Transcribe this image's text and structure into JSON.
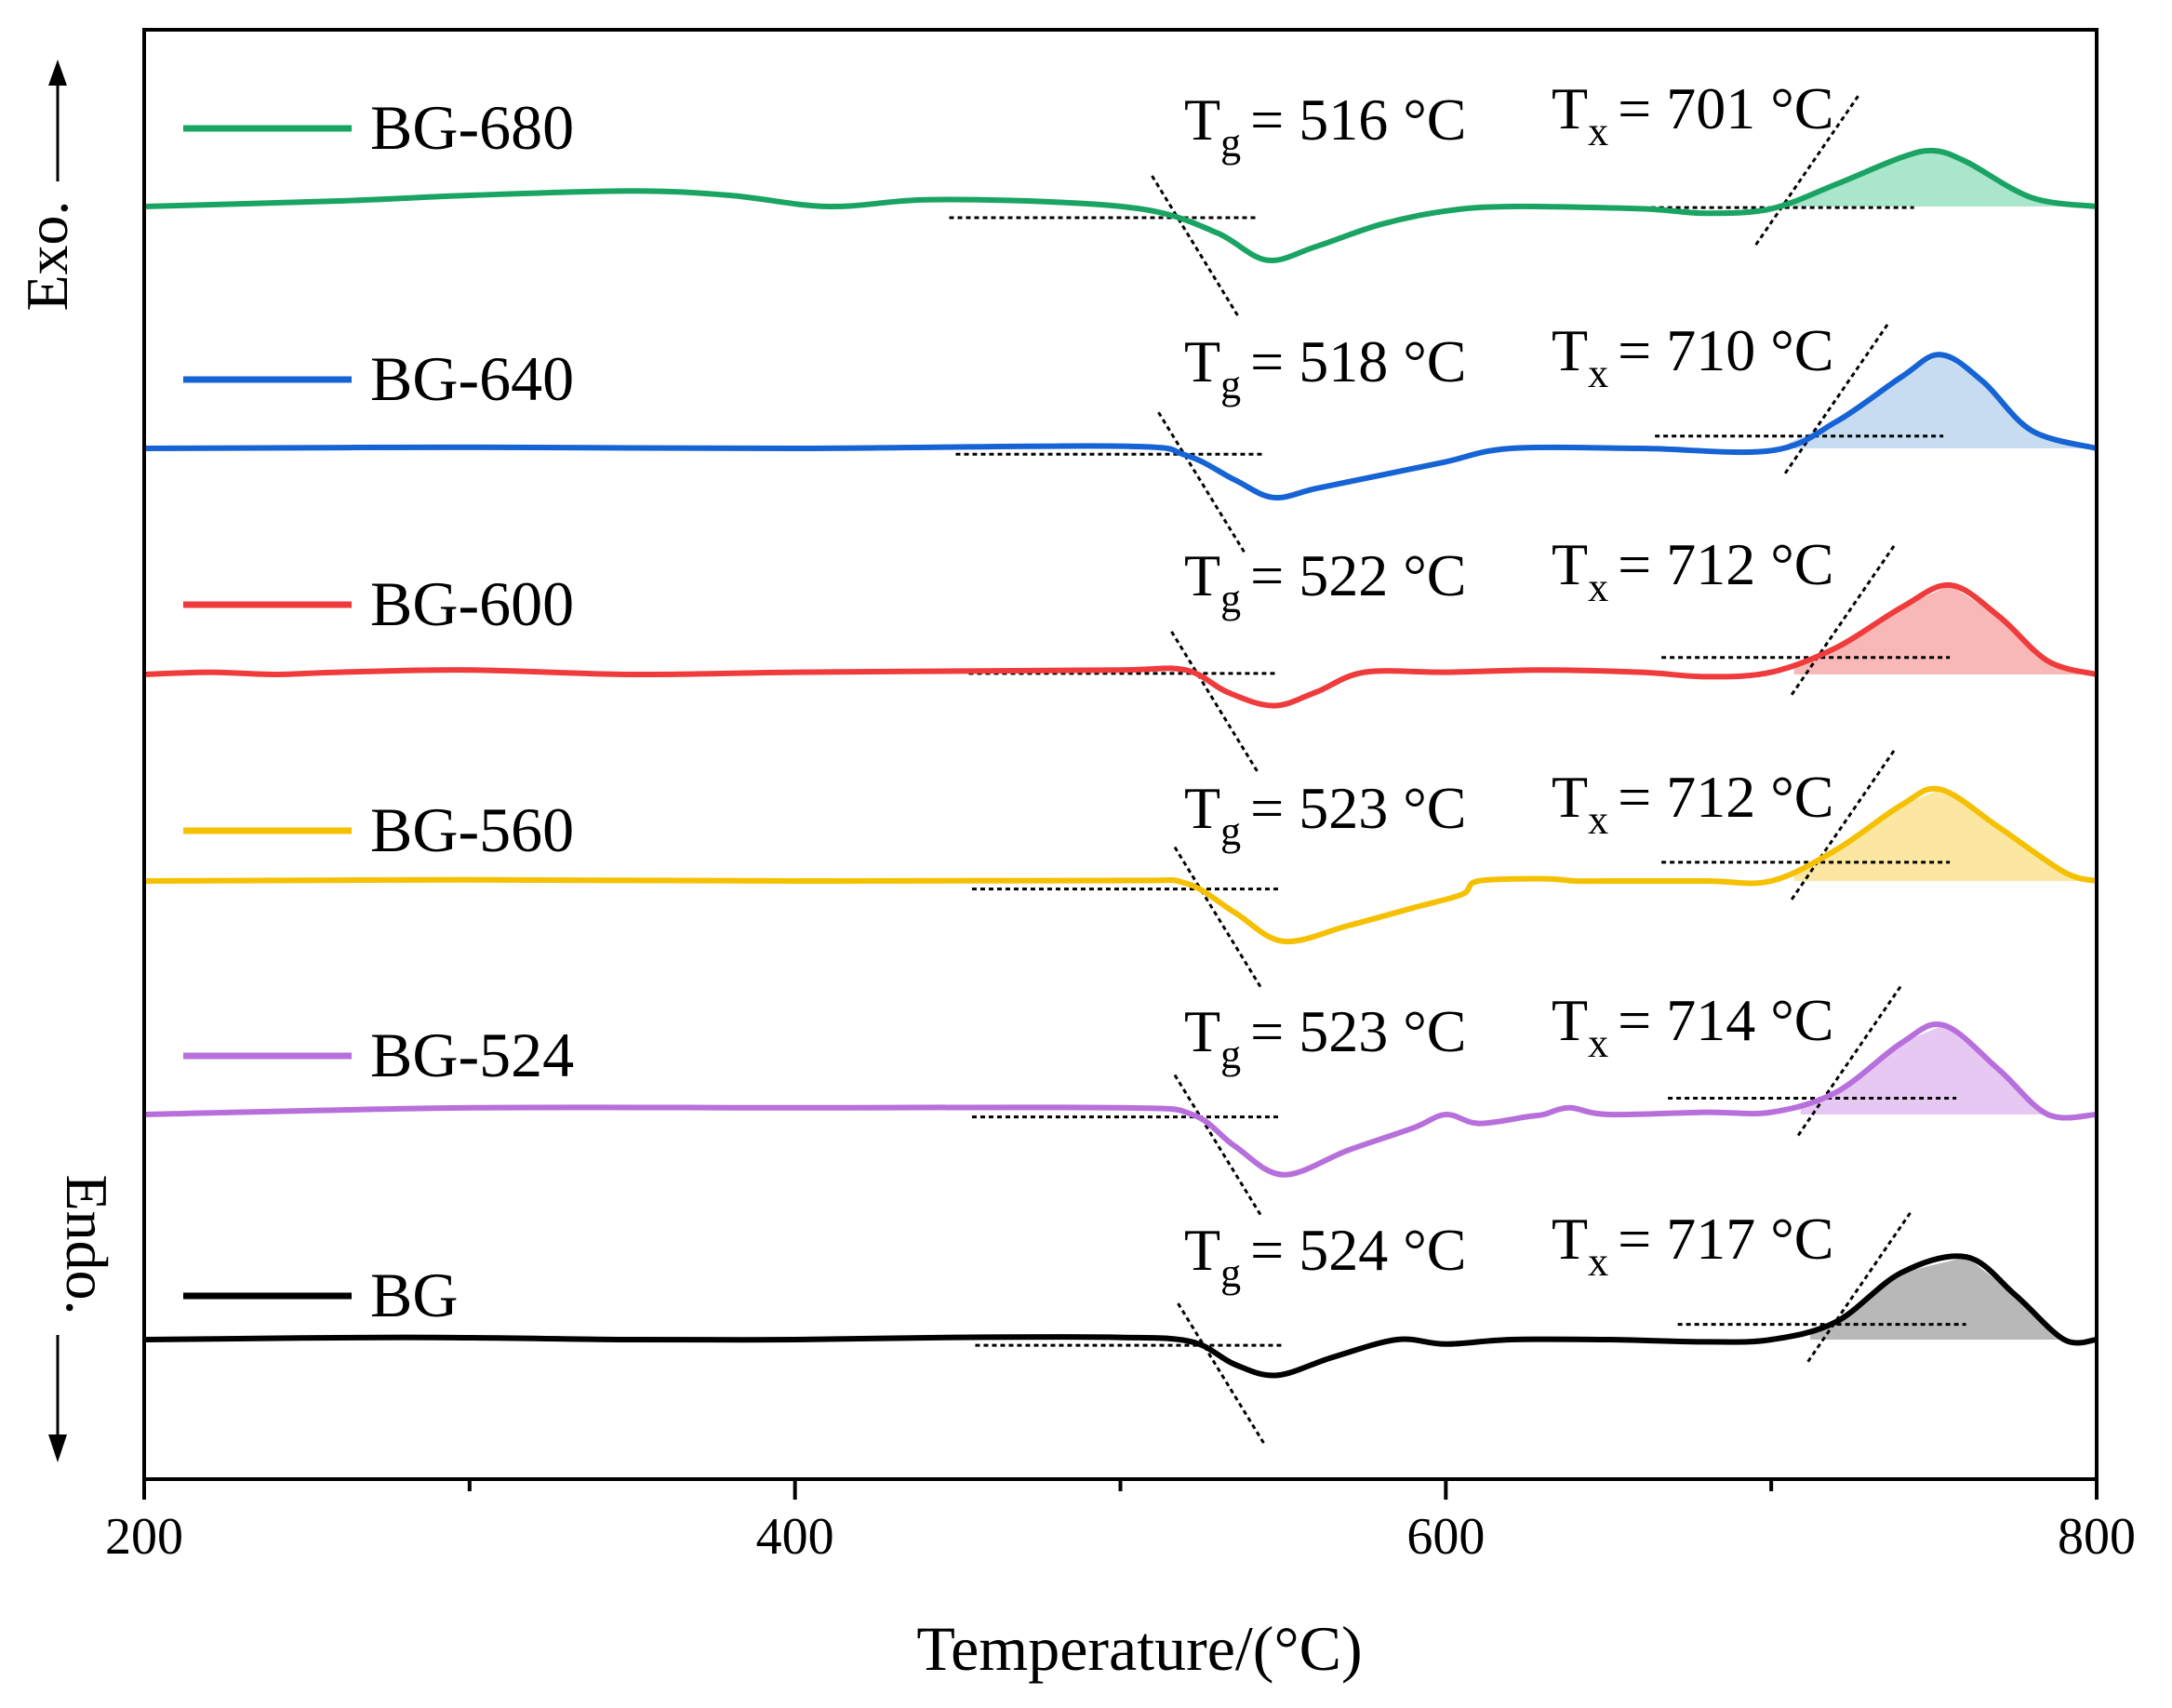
{
  "chart_data": {
    "type": "line",
    "title": "",
    "xlabel": "Temperature/(°C)",
    "ylabel_top": "Exo.",
    "ylabel_bottom": "Endo.",
    "xlim": [
      200,
      800
    ],
    "xticks": [
      200,
      400,
      600,
      800
    ],
    "xtick_labels": [
      "200",
      "400",
      "600",
      "800"
    ],
    "y_units": "arbitrary (stacked, offset curves)",
    "series": [
      {
        "name": "BG-680",
        "color": "#1aa463",
        "fill": "#a9e6cb",
        "baseline": 0,
        "tg_label": "= 516 °C",
        "tx_label": "= 701 °C",
        "tg": 516,
        "tx": 701,
        "points": [
          [
            200,
            0
          ],
          [
            260,
            2.5
          ],
          [
            300,
            5
          ],
          [
            350,
            7
          ],
          [
            380,
            5
          ],
          [
            410,
            0
          ],
          [
            440,
            3
          ],
          [
            480,
            2
          ],
          [
            510,
            -2
          ],
          [
            530,
            -12
          ],
          [
            545,
            -24
          ],
          [
            560,
            -18
          ],
          [
            580,
            -8
          ],
          [
            600,
            -2
          ],
          [
            620,
            0
          ],
          [
            660,
            -1
          ],
          [
            680,
            -3
          ],
          [
            700,
            -1
          ],
          [
            720,
            10
          ],
          [
            740,
            22
          ],
          [
            750,
            25
          ],
          [
            760,
            20
          ],
          [
            780,
            4
          ],
          [
            800,
            0
          ]
        ]
      },
      {
        "name": "BG-640",
        "color": "#1563d4",
        "fill": "#c7dcf0",
        "baseline": 0,
        "tg_label": "= 518 °C",
        "tx_label": "= 710 °C",
        "tg": 518,
        "tx": 710,
        "points": [
          [
            200,
            0
          ],
          [
            300,
            0.5
          ],
          [
            400,
            0
          ],
          [
            500,
            1
          ],
          [
            520,
            -3
          ],
          [
            535,
            -14
          ],
          [
            547,
            -22
          ],
          [
            560,
            -18
          ],
          [
            580,
            -12
          ],
          [
            600,
            -6
          ],
          [
            620,
            0
          ],
          [
            660,
            0
          ],
          [
            700,
            -1
          ],
          [
            720,
            12
          ],
          [
            740,
            32
          ],
          [
            752,
            42
          ],
          [
            765,
            30
          ],
          [
            780,
            8
          ],
          [
            800,
            0
          ]
        ]
      },
      {
        "name": "BG-600",
        "color": "#ef3b3b",
        "fill": "#f8b8b8",
        "baseline": 0,
        "tg_label": "= 522 °C",
        "tx_label": "= 712 °C",
        "tg": 522,
        "tx": 712,
        "points": [
          [
            200,
            0
          ],
          [
            220,
            1
          ],
          [
            240,
            0
          ],
          [
            260,
            1
          ],
          [
            300,
            2
          ],
          [
            350,
            0
          ],
          [
            400,
            1
          ],
          [
            450,
            1.5
          ],
          [
            500,
            2
          ],
          [
            520,
            2
          ],
          [
            533,
            -8
          ],
          [
            547,
            -14
          ],
          [
            560,
            -8
          ],
          [
            575,
            1
          ],
          [
            600,
            1
          ],
          [
            630,
            2
          ],
          [
            660,
            1
          ],
          [
            680,
            -1
          ],
          [
            700,
            1
          ],
          [
            720,
            12
          ],
          [
            740,
            30
          ],
          [
            755,
            40
          ],
          [
            770,
            26
          ],
          [
            785,
            6
          ],
          [
            800,
            0
          ]
        ]
      },
      {
        "name": "BG-560",
        "color": "#f5c000",
        "fill": "#fbe7a1",
        "baseline": 0,
        "tg_label": "= 523 °C",
        "tx_label": "= 712 °C",
        "tg": 523,
        "tx": 712,
        "points": [
          [
            200,
            0
          ],
          [
            300,
            0.5
          ],
          [
            400,
            0
          ],
          [
            500,
            0.2
          ],
          [
            520,
            -1
          ],
          [
            535,
            -14
          ],
          [
            550,
            -27
          ],
          [
            570,
            -20
          ],
          [
            590,
            -12
          ],
          [
            605,
            -6
          ],
          [
            610,
            0
          ],
          [
            630,
            1
          ],
          [
            640,
            0
          ],
          [
            650,
            0
          ],
          [
            680,
            0
          ],
          [
            700,
            0
          ],
          [
            720,
            14
          ],
          [
            740,
            34
          ],
          [
            752,
            41
          ],
          [
            770,
            24
          ],
          [
            790,
            4
          ],
          [
            800,
            0
          ]
        ]
      },
      {
        "name": "BG-524",
        "color": "#b76fdc",
        "fill": "#e6c8f2",
        "baseline": 0,
        "tg_label": "= 523 °C",
        "tx_label": "= 714 °C",
        "tg": 523,
        "tx": 714,
        "points": [
          [
            200,
            0
          ],
          [
            300,
            3
          ],
          [
            400,
            3
          ],
          [
            500,
            3
          ],
          [
            522,
            0
          ],
          [
            535,
            -14
          ],
          [
            550,
            -27
          ],
          [
            570,
            -16
          ],
          [
            590,
            -6
          ],
          [
            600,
            0
          ],
          [
            610,
            -4
          ],
          [
            625,
            -1
          ],
          [
            630,
            0
          ],
          [
            638,
            3
          ],
          [
            650,
            0
          ],
          [
            680,
            1
          ],
          [
            700,
            1
          ],
          [
            720,
            10
          ],
          [
            740,
            32
          ],
          [
            753,
            40
          ],
          [
            770,
            20
          ],
          [
            785,
            0
          ],
          [
            800,
            0
          ]
        ]
      },
      {
        "name": "BG",
        "color": "#000000",
        "fill": "#b8b8b8",
        "baseline": 0,
        "tg_label": "= 524 °C",
        "tx_label": "= 717 °C",
        "tg": 524,
        "tx": 717,
        "points": [
          [
            200,
            0
          ],
          [
            280,
            1
          ],
          [
            350,
            0
          ],
          [
            400,
            0
          ],
          [
            450,
            1
          ],
          [
            500,
            1
          ],
          [
            522,
            -1
          ],
          [
            535,
            -11
          ],
          [
            548,
            -16
          ],
          [
            565,
            -8
          ],
          [
            585,
            0
          ],
          [
            600,
            -2
          ],
          [
            620,
            0
          ],
          [
            650,
            0
          ],
          [
            680,
            -1
          ],
          [
            700,
            0
          ],
          [
            720,
            8
          ],
          [
            740,
            30
          ],
          [
            760,
            37
          ],
          [
            775,
            20
          ],
          [
            790,
            0
          ],
          [
            800,
            0
          ]
        ]
      }
    ]
  }
}
